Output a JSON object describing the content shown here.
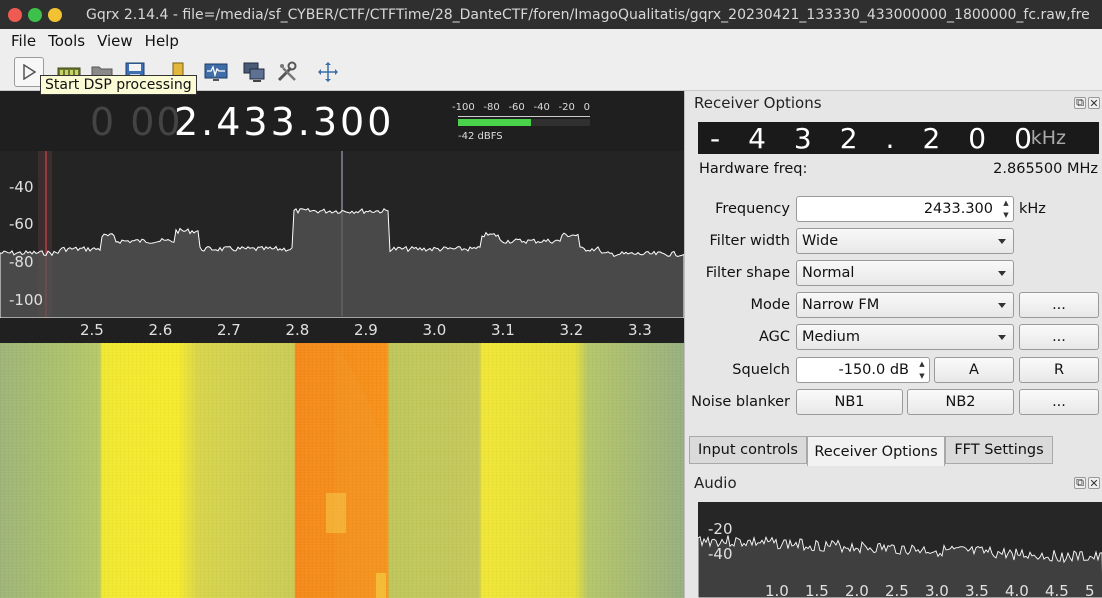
{
  "window": {
    "title": "Gqrx 2.14.4 - file=/media/sf_CYBER/CTF/CTFTime/28_DanteCTF/foren/ImagoQualitatis/gqrx_20230421_133330_433000000_1800000_fc.raw,fre"
  },
  "menu": {
    "items": [
      "File",
      "Tools",
      "View",
      "Help"
    ]
  },
  "toolbar": {
    "tooltip": "Start DSP processing",
    "icons": [
      "play-icon",
      "sdr-device-icon",
      "folder-icon",
      "save-icon",
      "bookmark-icon",
      "monitor-icon",
      "network-icon",
      "tools-icon",
      "fullscreen-icon"
    ]
  },
  "spectrum": {
    "freq_dim": "0 00",
    "freq_main": "2.433.300",
    "meter_scale": [
      "-100",
      "-80",
      "-60",
      "-40",
      "-20",
      "0"
    ],
    "meter_label": "-42 dBFS",
    "meter_level_fraction": 0.55,
    "y_labels": [
      "-40",
      "-60",
      "-80",
      "-100"
    ],
    "x_labels": [
      "2.5",
      "2.6",
      "2.7",
      "2.8",
      "2.9",
      "3.0",
      "3.1",
      "3.2",
      "3.3"
    ],
    "colors": {
      "trace": "#ffffff",
      "background": "#242424",
      "marker": "#d2434a"
    }
  },
  "receiver_options": {
    "title": "Receiver Options",
    "lcd_digits": "-432.200",
    "lcd_unit": "kHz",
    "hardware_freq_label": "Hardware freq:",
    "hardware_freq_value": "2.865500 MHz",
    "frequency_label": "Frequency",
    "frequency_value": "2433.300",
    "frequency_unit": "kHz",
    "filter_width_label": "Filter width",
    "filter_width_value": "Wide",
    "filter_shape_label": "Filter shape",
    "filter_shape_value": "Normal",
    "mode_label": "Mode",
    "mode_value": "Narrow FM",
    "agc_label": "AGC",
    "agc_value": "Medium",
    "squelch_label": "Squelch",
    "squelch_value": "-150.0 dB",
    "squelch_a": "A",
    "squelch_r": "R",
    "noise_blanker_label": "Noise blanker",
    "nb1": "NB1",
    "nb2": "NB2",
    "more": "..."
  },
  "tabs": [
    "Input controls",
    "Receiver Options",
    "FFT Settings"
  ],
  "audio": {
    "title": "Audio",
    "y_labels": [
      "-20",
      "-40"
    ],
    "x_labels": [
      "1.0",
      "1.5",
      "2.0",
      "2.5",
      "3.0",
      "3.5",
      "4.0",
      "4.5",
      "5"
    ]
  }
}
